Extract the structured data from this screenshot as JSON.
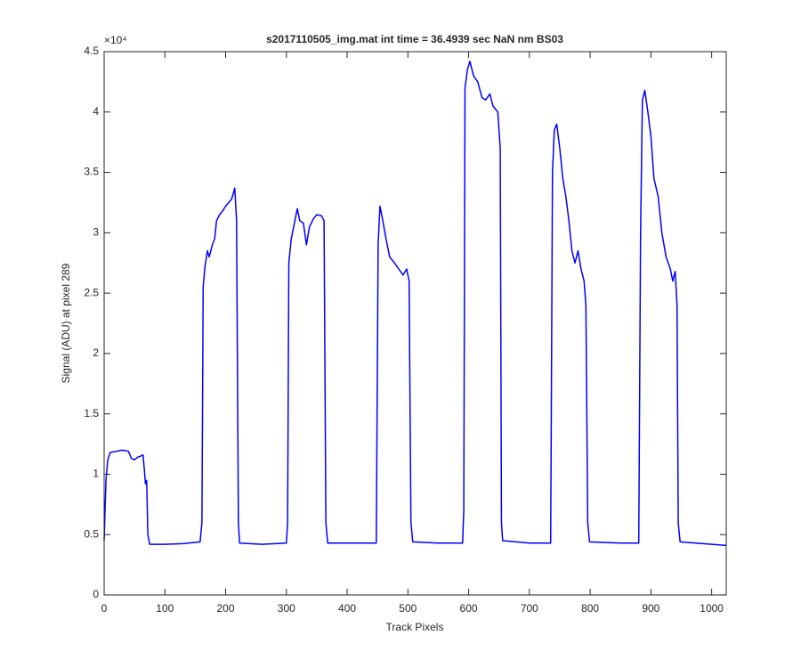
{
  "chart_data": {
    "type": "line",
    "title": "s2017110505_img.mat int time = 36.4939 sec  NaN nm BS03",
    "x_label": "Track Pixels",
    "y_label": "Signal (ADU) at pixel 289",
    "y_multiplier": "×10⁴",
    "color": "#0000ff",
    "xlim": [
      0,
      1024
    ],
    "xticks": [
      0,
      100,
      200,
      300,
      400,
      500,
      600,
      700,
      800,
      900,
      1000
    ],
    "ylim": [
      0,
      4.5
    ],
    "yticks": [
      0,
      0.5,
      1,
      1.5,
      2,
      2.5,
      3,
      3.5,
      4,
      4.5
    ],
    "x": [
      0,
      3,
      6,
      10,
      20,
      30,
      40,
      45,
      50,
      55,
      60,
      64,
      66,
      68,
      70,
      72,
      75,
      100,
      130,
      158,
      161,
      163,
      166,
      170,
      173,
      178,
      182,
      185,
      190,
      195,
      200,
      205,
      210,
      215,
      218,
      221,
      223,
      260,
      300,
      302,
      304,
      308,
      312,
      318,
      322,
      328,
      333,
      338,
      345,
      350,
      358,
      362,
      365,
      368,
      420,
      448,
      451,
      454,
      458,
      464,
      470,
      478,
      485,
      492,
      498,
      502,
      505,
      508,
      550,
      590,
      592,
      594,
      598,
      602,
      608,
      615,
      622,
      628,
      635,
      640,
      648,
      652,
      654,
      656,
      700,
      735,
      738,
      741,
      745,
      750,
      755,
      760,
      765,
      770,
      775,
      780,
      785,
      790,
      793,
      796,
      799,
      850,
      880,
      883,
      886,
      890,
      895,
      900,
      905,
      912,
      918,
      925,
      932,
      936,
      940,
      943,
      945,
      948,
      1000,
      1024
    ],
    "values": [
      0.45,
      0.95,
      1.12,
      1.18,
      1.19,
      1.2,
      1.19,
      1.13,
      1.12,
      1.14,
      1.15,
      1.16,
      1.05,
      0.92,
      0.95,
      0.5,
      0.42,
      0.42,
      0.425,
      0.44,
      0.6,
      2.55,
      2.72,
      2.85,
      2.8,
      2.9,
      2.95,
      3.1,
      3.15,
      3.18,
      3.22,
      3.25,
      3.28,
      3.37,
      3.1,
      0.6,
      0.43,
      0.42,
      0.43,
      0.6,
      2.75,
      2.95,
      3.05,
      3.2,
      3.1,
      3.08,
      2.9,
      3.05,
      3.12,
      3.15,
      3.14,
      3.1,
      0.6,
      0.43,
      0.43,
      0.43,
      2.9,
      3.22,
      3.12,
      2.95,
      2.8,
      2.75,
      2.7,
      2.65,
      2.7,
      2.6,
      0.6,
      0.44,
      0.43,
      0.43,
      0.7,
      4.2,
      4.35,
      4.42,
      4.3,
      4.25,
      4.12,
      4.1,
      4.15,
      4.05,
      4.0,
      3.7,
      0.6,
      0.45,
      0.43,
      0.43,
      3.5,
      3.85,
      3.9,
      3.7,
      3.45,
      3.3,
      3.1,
      2.85,
      2.75,
      2.85,
      2.7,
      2.6,
      2.4,
      0.6,
      0.44,
      0.43,
      0.43,
      3.0,
      4.1,
      4.18,
      4.0,
      3.8,
      3.45,
      3.3,
      3.0,
      2.8,
      2.7,
      2.6,
      2.68,
      2.4,
      0.6,
      0.44,
      0.42,
      0.41
    ],
    "grid": false
  }
}
